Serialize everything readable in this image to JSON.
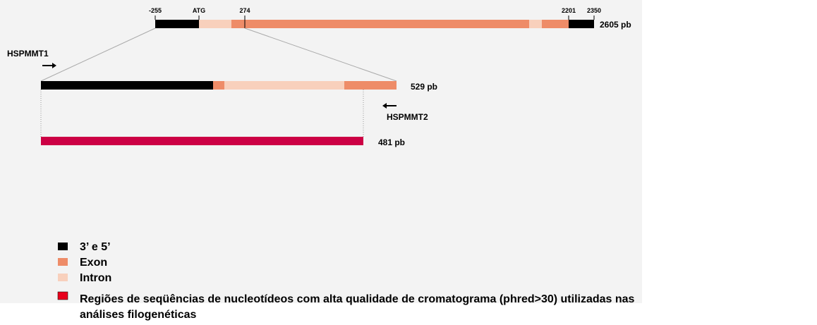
{
  "diagram": {
    "gene_markers": [
      "-255",
      "ATG",
      "274",
      "2201",
      "2350"
    ],
    "gene_size": "2605 pb",
    "primer_forward": "HSPMMT1",
    "primer_reverse": "HSPMMT2",
    "amplicon_size": "529 pb",
    "quality_region_size": "481 pb",
    "legend": [
      {
        "label": "3’ e 5’",
        "color": "#000000"
      },
      {
        "label": "Exon",
        "color": "#ee8c68"
      },
      {
        "label": "Intron",
        "color": "#f8d0bc"
      }
    ],
    "quality_legend": {
      "color": "#e8001c",
      "lines": [
        "Regiões de seqüências de nucleotídeos com alta qualidade de cromatograma (phred>30) utilizadas nas",
        "análises filogenéticas"
      ]
    }
  }
}
